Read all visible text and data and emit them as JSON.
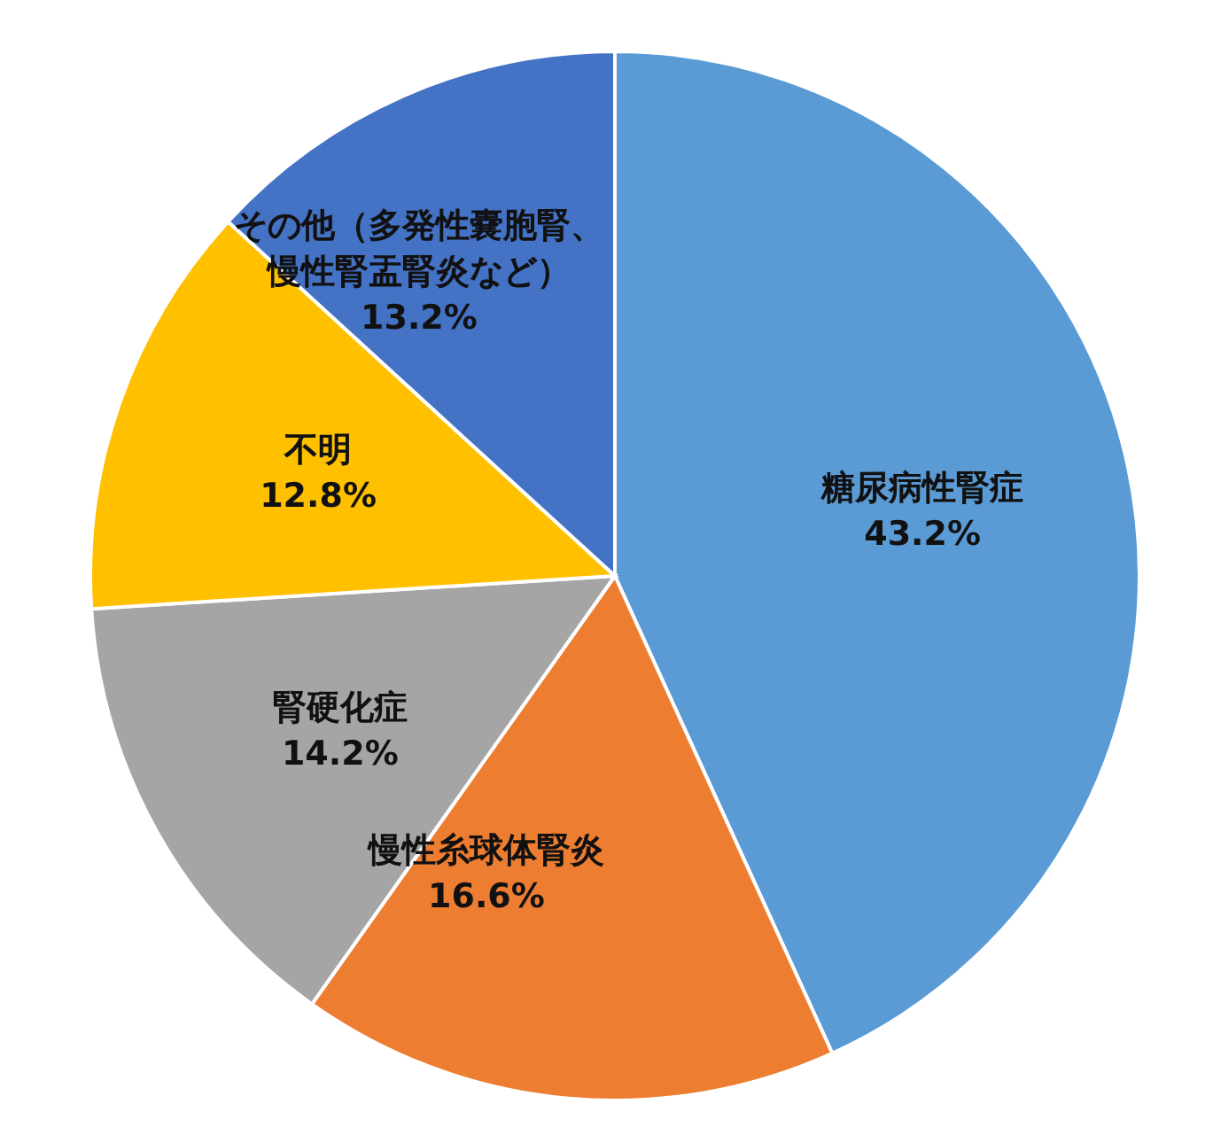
{
  "chart_data": {
    "type": "pie",
    "categories": [
      "糖尿病性腎症",
      "慢性糸球体腎炎",
      "腎硬化症",
      "不明",
      "その他（多発性嚢胞腎、慢性腎盂腎炎など）"
    ],
    "values": [
      43.2,
      16.6,
      14.2,
      12.8,
      13.2
    ],
    "colors": [
      "#5b9bd5",
      "#ed7d31",
      "#a5a5a5",
      "#ffc000",
      "#4472c4"
    ],
    "value_labels": [
      "43.2%",
      "16.6%",
      "14.2%",
      "12.8%",
      "13.2%"
    ]
  }
}
